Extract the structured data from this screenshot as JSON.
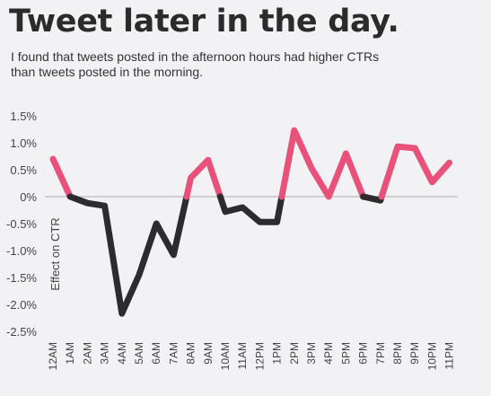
{
  "title": "Tweet later in the day.",
  "subtitle": "I found that tweets posted in the afternoon hours had higher CTRs than tweets posted in the morning.",
  "colors": {
    "positive": "#e8527a",
    "negative": "#2d2a30",
    "zero_line": "#cfcfd3",
    "background": "#f2f2f4"
  },
  "chart_data": {
    "type": "line",
    "title": "",
    "xlabel": "",
    "ylabel": "Effect on CTR",
    "ylim": [
      -2.5,
      1.5
    ],
    "yticks": [
      1.5,
      1.0,
      0.5,
      0,
      -0.5,
      -1.0,
      -1.5,
      -2.0,
      -2.5
    ],
    "ytick_labels": [
      "1.5%",
      "1.0%",
      "0.5%",
      "0%",
      "-0.5%",
      "-1.0%",
      "-1.5%",
      "-2.0%",
      "-2.5%"
    ],
    "categories": [
      "12AM",
      "1AM",
      "2AM",
      "3AM",
      "4AM",
      "5AM",
      "6AM",
      "7AM",
      "8AM",
      "9AM",
      "10AM",
      "11AM",
      "12PM",
      "1PM",
      "2PM",
      "3PM",
      "4PM",
      "5PM",
      "6PM",
      "7PM",
      "8PM",
      "9PM",
      "10PM",
      "11PM"
    ],
    "values": [
      0.7,
      0.0,
      -0.12,
      -0.17,
      -2.17,
      -1.45,
      -0.5,
      -1.08,
      0.35,
      0.68,
      -0.28,
      -0.2,
      -0.47,
      -0.47,
      1.23,
      0.53,
      0.0,
      0.8,
      0.0,
      -0.07,
      0.93,
      0.9,
      0.27,
      0.63
    ],
    "grid": false,
    "zero_line": true,
    "line_coloring": "pink above 0%, dark below 0%"
  }
}
